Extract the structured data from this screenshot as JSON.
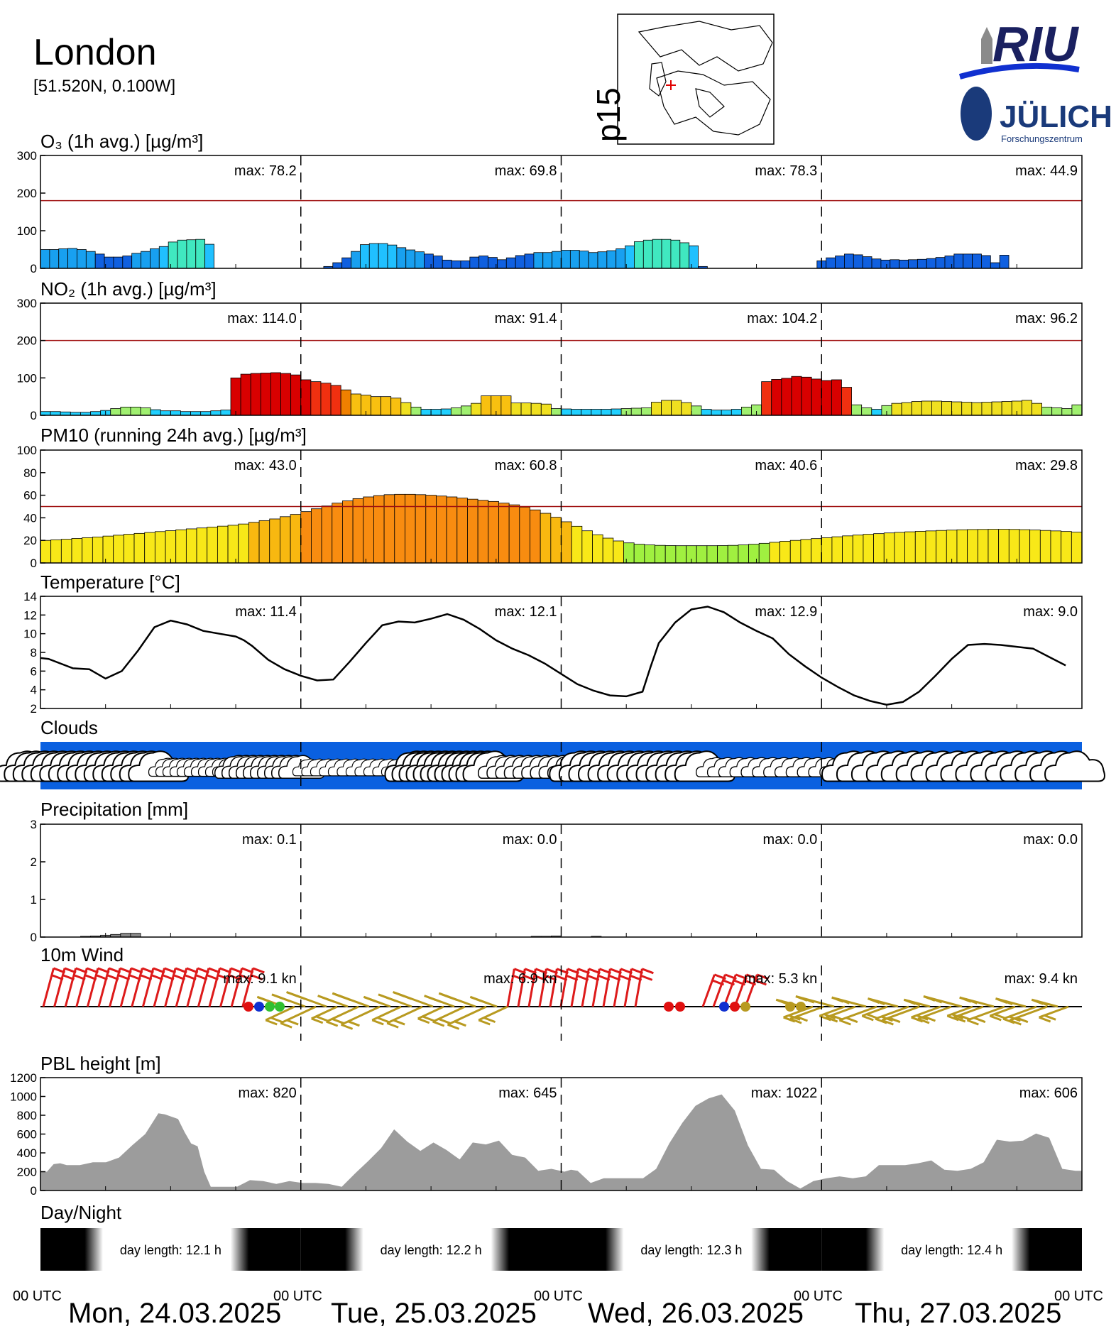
{
  "header": {
    "city": "London",
    "coords": "[51.520N,  0.100W]",
    "map_label": "p15",
    "logo_riu": "RIU",
    "logo_julich": "JÜLICH",
    "logo_fz": "Forschungszentrum"
  },
  "colors": {
    "threshold": "#a01010",
    "clouds_sky": "#0a60e0",
    "pbl_fill": "#9c9c9c",
    "wind_red": "#dd1a1a",
    "wind_gold": "#b89a20"
  },
  "panels": {
    "o3": {
      "title": "O₃ (1h avg.) [µg/m³]",
      "max": [
        "max:  78.2",
        "max:  69.8",
        "max:  78.3",
        "max:  44.9"
      ]
    },
    "no2": {
      "title": "NO₂ (1h avg.) [µg/m³]",
      "max": [
        "max: 114.0",
        "max:  91.4",
        "max: 104.2",
        "max:  96.2"
      ]
    },
    "pm10": {
      "title": "PM10 (running 24h avg.) [µg/m³]",
      "max": [
        "max:  43.0",
        "max:  60.8",
        "max:  40.6",
        "max:  29.8"
      ]
    },
    "temp": {
      "title": "Temperature [°C]",
      "max": [
        "max:  11.4",
        "max:  12.1",
        "max:  12.9",
        "max:   9.0"
      ]
    },
    "clouds": {
      "title": "Clouds"
    },
    "precip": {
      "title": "Precipitation [mm]",
      "max": [
        "max:   0.1",
        "max:   0.0",
        "max:   0.0",
        "max:   0.0"
      ]
    },
    "wind": {
      "title": "10m Wind",
      "max": [
        "max:  9.1 kn",
        "max:  6.9 kn",
        "max:  5.3 kn",
        "max:  9.4 kn"
      ]
    },
    "pbl": {
      "title": "PBL height [m]",
      "max": [
        "max:   820",
        "max:   645",
        "max:  1022",
        "max:   606"
      ]
    },
    "daynight": {
      "title": "Day/Night",
      "labels": [
        "day length:  12.1 h",
        "day length:  12.2 h",
        "day length:  12.3 h",
        "day length:  12.4 h"
      ]
    }
  },
  "footer": {
    "utc": "00 UTC",
    "dates": [
      "Mon, 24.03.2025",
      "Tue, 25.03.2025",
      "Wed, 26.03.2025",
      "Thu, 27.03.2025"
    ]
  },
  "chart_data": [
    {
      "id": "o3",
      "type": "bar",
      "ylim": [
        0,
        300
      ],
      "yticks": [
        0,
        100,
        200,
        300
      ],
      "threshold": 180,
      "values": [
        50,
        50,
        52,
        53,
        50,
        45,
        38,
        30,
        30,
        33,
        40,
        45,
        52,
        58,
        70,
        75,
        76,
        77,
        64,
        null,
        null,
        null,
        null,
        null,
        null,
        null,
        null,
        null,
        null,
        null,
        null,
        5,
        15,
        28,
        45,
        63,
        66,
        66,
        62,
        55,
        49,
        44,
        38,
        33,
        22,
        20,
        20,
        30,
        33,
        29,
        23,
        28,
        34,
        38,
        42,
        42,
        45,
        48,
        48,
        46,
        42,
        44,
        47,
        52,
        60,
        71,
        75,
        77,
        77,
        75,
        68,
        60,
        5,
        null,
        null,
        null,
        null,
        null,
        null,
        null,
        null,
        null,
        null,
        null,
        null,
        20,
        28,
        33,
        38,
        36,
        31,
        25,
        22,
        23,
        22,
        23,
        24,
        26,
        29,
        33,
        38,
        38,
        38,
        34,
        15,
        35,
        null,
        null,
        null,
        null,
        null,
        null,
        null,
        null
      ]
    },
    {
      "id": "no2",
      "type": "bar",
      "ylim": [
        0,
        300
      ],
      "yticks": [
        0,
        100,
        200,
        300
      ],
      "threshold": 200,
      "values": [
        10,
        10,
        9,
        8,
        8,
        10,
        13,
        18,
        22,
        22,
        20,
        15,
        12,
        12,
        10,
        10,
        10,
        12,
        14,
        100,
        110,
        112,
        113,
        114,
        112,
        108,
        95,
        90,
        86,
        80,
        68,
        57,
        54,
        50,
        50,
        46,
        34,
        22,
        16,
        16,
        17,
        20,
        25,
        32,
        52,
        52,
        52,
        33,
        33,
        32,
        30,
        18,
        17,
        16,
        16,
        16,
        16,
        17,
        18,
        19,
        20,
        35,
        40,
        40,
        34,
        25,
        16,
        14,
        14,
        16,
        22,
        28,
        90,
        96,
        99,
        104,
        102,
        97,
        93,
        95,
        75,
        28,
        20,
        16,
        26,
        32,
        34,
        37,
        38,
        38,
        37,
        36,
        35,
        34,
        35,
        36,
        37,
        38,
        40,
        32,
        22,
        20,
        18,
        28
      ]
    },
    {
      "id": "pm10",
      "type": "bar",
      "ylim": [
        0,
        100
      ],
      "yticks": [
        0,
        20,
        40,
        60,
        80,
        100
      ],
      "threshold": 50,
      "values": [
        20,
        20.5,
        21,
        21.7,
        22.4,
        23,
        23.8,
        24.6,
        25.4,
        26.2,
        27,
        27.8,
        28.6,
        29.4,
        30.2,
        31,
        31.8,
        32.6,
        33.4,
        34.5,
        36,
        37.5,
        39,
        41,
        43,
        45.5,
        48,
        50.5,
        53,
        55,
        57,
        58.5,
        59.7,
        60.5,
        60.8,
        60.8,
        60.5,
        60,
        59.3,
        58.5,
        57.5,
        56.5,
        55.5,
        54.5,
        53,
        51.5,
        49.5,
        47,
        44,
        40.5,
        36.5,
        32.5,
        28.5,
        25,
        22,
        19.5,
        17.8,
        16.6,
        16,
        15.6,
        15.4,
        15.3,
        15.3,
        15.3,
        15.3,
        15.4,
        15.6,
        16,
        16.6,
        17.4,
        18.3,
        19.2,
        20,
        20.8,
        21.6,
        22.4,
        23.2,
        24,
        24.7,
        25.4,
        26,
        26.6,
        27.1,
        27.6,
        28,
        28.4,
        28.8,
        29.1,
        29.4,
        29.6,
        29.7,
        29.8,
        29.8,
        29.7,
        29.5,
        29.2,
        28.8,
        28.4,
        27.9,
        27.3
      ]
    },
    {
      "id": "temp",
      "type": "line",
      "ylim": [
        2,
        14
      ],
      "yticks": [
        2,
        4,
        6,
        8,
        10,
        12,
        14
      ],
      "points": [
        [
          0,
          7.4
        ],
        [
          1,
          7.3
        ],
        [
          4,
          6.3
        ],
        [
          6,
          6.2
        ],
        [
          8,
          5.2
        ],
        [
          10,
          6
        ],
        [
          12,
          8.2
        ],
        [
          14,
          10.7
        ],
        [
          16,
          11.4
        ],
        [
          18,
          11
        ],
        [
          20,
          10.3
        ],
        [
          22,
          10
        ],
        [
          24,
          9.7
        ],
        [
          25,
          9.3
        ],
        [
          26,
          8.7
        ],
        [
          28,
          7.2
        ],
        [
          30,
          6.2
        ],
        [
          32,
          5.5
        ],
        [
          34,
          5
        ],
        [
          36,
          5.1
        ],
        [
          38,
          7
        ],
        [
          40,
          9
        ],
        [
          42,
          10.9
        ],
        [
          44,
          11.3
        ],
        [
          46,
          11.2
        ],
        [
          48,
          11.6
        ],
        [
          50,
          12.1
        ],
        [
          52,
          11.5
        ],
        [
          54,
          10.5
        ],
        [
          56,
          9.3
        ],
        [
          58,
          8.4
        ],
        [
          60,
          7.7
        ],
        [
          62,
          6.8
        ],
        [
          64,
          5.7
        ],
        [
          66,
          4.6
        ],
        [
          68,
          3.9
        ],
        [
          70,
          3.4
        ],
        [
          72,
          3.3
        ],
        [
          74,
          3.8
        ],
        [
          75,
          6.5
        ],
        [
          76,
          9
        ],
        [
          78,
          11.2
        ],
        [
          80,
          12.6
        ],
        [
          82,
          12.9
        ],
        [
          84,
          12.3
        ],
        [
          86,
          11.2
        ],
        [
          88,
          10.3
        ],
        [
          90,
          9.5
        ],
        [
          92,
          7.8
        ],
        [
          94,
          6.5
        ],
        [
          96,
          5.3
        ],
        [
          98,
          4.3
        ],
        [
          100,
          3.4
        ],
        [
          102,
          2.8
        ],
        [
          104,
          2.4
        ],
        [
          106,
          2.7
        ],
        [
          108,
          3.8
        ],
        [
          110,
          5.5
        ],
        [
          112,
          7.3
        ],
        [
          114,
          8.8
        ],
        [
          116,
          8.9
        ],
        [
          118,
          8.8
        ],
        [
          120,
          8.6
        ],
        [
          122,
          8.4
        ],
        [
          124,
          7.5
        ],
        [
          126,
          6.6
        ]
      ]
    },
    {
      "id": "clouds",
      "type": "table",
      "rows": [
        [
          "day 1",
          "overcast early, cumulus and thin cloud after 14 UTC"
        ],
        [
          "day 2",
          "thin cloud at night, overcast midday, cumulus afternoon"
        ],
        [
          "day 3",
          "overcast morning, scattered cumulus afternoon"
        ],
        [
          "day 4",
          "overcast all day"
        ]
      ]
    },
    {
      "id": "precip",
      "type": "bar",
      "ylim": [
        0,
        3
      ],
      "yticks": [
        0,
        1,
        2,
        3
      ],
      "values": [
        0,
        0,
        0,
        0,
        0.02,
        0.03,
        0.05,
        0.07,
        0.1,
        0.1,
        0,
        0,
        0,
        0,
        0,
        0,
        0,
        0,
        0,
        0,
        0,
        0,
        0,
        0,
        0,
        0,
        0,
        0,
        0,
        0,
        0,
        0,
        0,
        0,
        0,
        0,
        0,
        0,
        0,
        0,
        0,
        0,
        0,
        0,
        0,
        0,
        0,
        0,
        0,
        0.02,
        0.02,
        0.03,
        0,
        0,
        0,
        0.02,
        0,
        0,
        0,
        0,
        0,
        0,
        0,
        0,
        0,
        0,
        0,
        0,
        0,
        0,
        0,
        0,
        0,
        0,
        0,
        0,
        0,
        0,
        0,
        0,
        0,
        0,
        0,
        0,
        0,
        0,
        0,
        0,
        0,
        0,
        0,
        0,
        0,
        0,
        0,
        0,
        0,
        0,
        0,
        0,
        0,
        0,
        0,
        0
      ]
    },
    {
      "id": "wind",
      "type": "scatter",
      "units": "kn"
    },
    {
      "id": "pbl",
      "type": "area",
      "ylim": [
        0,
        1200
      ],
      "yticks": [
        0,
        200,
        400,
        600,
        800,
        1000,
        1200
      ],
      "points": [
        [
          0,
          200
        ],
        [
          1,
          200
        ],
        [
          2,
          280
        ],
        [
          3,
          290
        ],
        [
          4,
          270
        ],
        [
          6,
          270
        ],
        [
          8,
          300
        ],
        [
          10,
          300
        ],
        [
          12,
          350
        ],
        [
          14,
          480
        ],
        [
          16,
          600
        ],
        [
          18,
          820
        ],
        [
          19,
          810
        ],
        [
          21,
          760
        ],
        [
          22,
          620
        ],
        [
          23,
          500
        ],
        [
          24,
          470
        ],
        [
          25,
          200
        ],
        [
          26,
          40
        ],
        [
          28,
          40
        ],
        [
          30,
          40
        ],
        [
          32,
          110
        ],
        [
          34,
          100
        ],
        [
          36,
          70
        ],
        [
          38,
          100
        ],
        [
          40,
          80
        ],
        [
          42,
          80
        ],
        [
          44,
          70
        ],
        [
          46,
          40
        ],
        [
          48,
          180
        ],
        [
          50,
          310
        ],
        [
          52,
          450
        ],
        [
          54,
          650
        ],
        [
          56,
          520
        ],
        [
          58,
          420
        ],
        [
          60,
          510
        ],
        [
          62,
          430
        ],
        [
          64,
          330
        ],
        [
          66,
          510
        ],
        [
          68,
          490
        ],
        [
          70,
          530
        ],
        [
          72,
          380
        ],
        [
          74,
          350
        ],
        [
          76,
          210
        ],
        [
          78,
          230
        ],
        [
          80,
          200
        ],
        [
          81,
          220
        ],
        [
          82,
          210
        ],
        [
          84,
          80
        ],
        [
          86,
          130
        ],
        [
          88,
          130
        ],
        [
          90,
          130
        ],
        [
          92,
          130
        ],
        [
          94,
          230
        ],
        [
          96,
          500
        ],
        [
          98,
          720
        ],
        [
          100,
          900
        ],
        [
          102,
          980
        ],
        [
          104,
          1022
        ],
        [
          106,
          850
        ],
        [
          108,
          480
        ],
        [
          110,
          230
        ],
        [
          112,
          220
        ],
        [
          114,
          100
        ],
        [
          116,
          20
        ],
        [
          118,
          100
        ],
        [
          120,
          130
        ],
        [
          122,
          150
        ],
        [
          124,
          130
        ],
        [
          126,
          150
        ],
        [
          128,
          270
        ],
        [
          130,
          270
        ],
        [
          132,
          270
        ],
        [
          134,
          290
        ],
        [
          136,
          320
        ],
        [
          138,
          220
        ],
        [
          140,
          210
        ],
        [
          142,
          230
        ],
        [
          144,
          300
        ],
        [
          146,
          540
        ],
        [
          148,
          520
        ],
        [
          150,
          530
        ],
        [
          152,
          606
        ],
        [
          154,
          560
        ],
        [
          156,
          230
        ],
        [
          158,
          210
        ],
        [
          159,
          210
        ]
      ]
    },
    {
      "id": "daynight",
      "type": "table",
      "rows": [
        [
          "Mon, 24.03.2025",
          "12.1 h"
        ],
        [
          "Tue, 25.03.2025",
          "12.2 h"
        ],
        [
          "Wed, 26.03.2025",
          "12.3 h"
        ],
        [
          "Thu, 27.03.2025",
          "12.4 h"
        ]
      ]
    }
  ]
}
